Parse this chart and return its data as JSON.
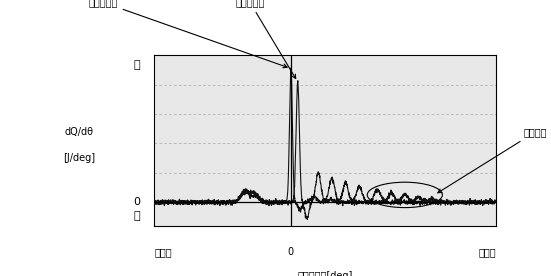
{
  "xlabel": "クランク角[deg]",
  "ylabel_line1": "dQ/dθ",
  "ylabel_line2": "[J/deg]",
  "ylabel_top": "正",
  "ylabel_bottom": "負",
  "xlabel_left": "進角側",
  "xlabel_right": "遠角側",
  "label_normal": "正常センサ",
  "label_abnormal": "異常センサ",
  "label_combustion": "燃焼後半",
  "background_color": "#ffffff",
  "plot_bg_color": "#e8e8e8",
  "grid_color": "#aaaaaa",
  "line_color": "#111111",
  "xlim": [
    -60,
    90
  ],
  "ylim": [
    -0.18,
    1.1
  ]
}
